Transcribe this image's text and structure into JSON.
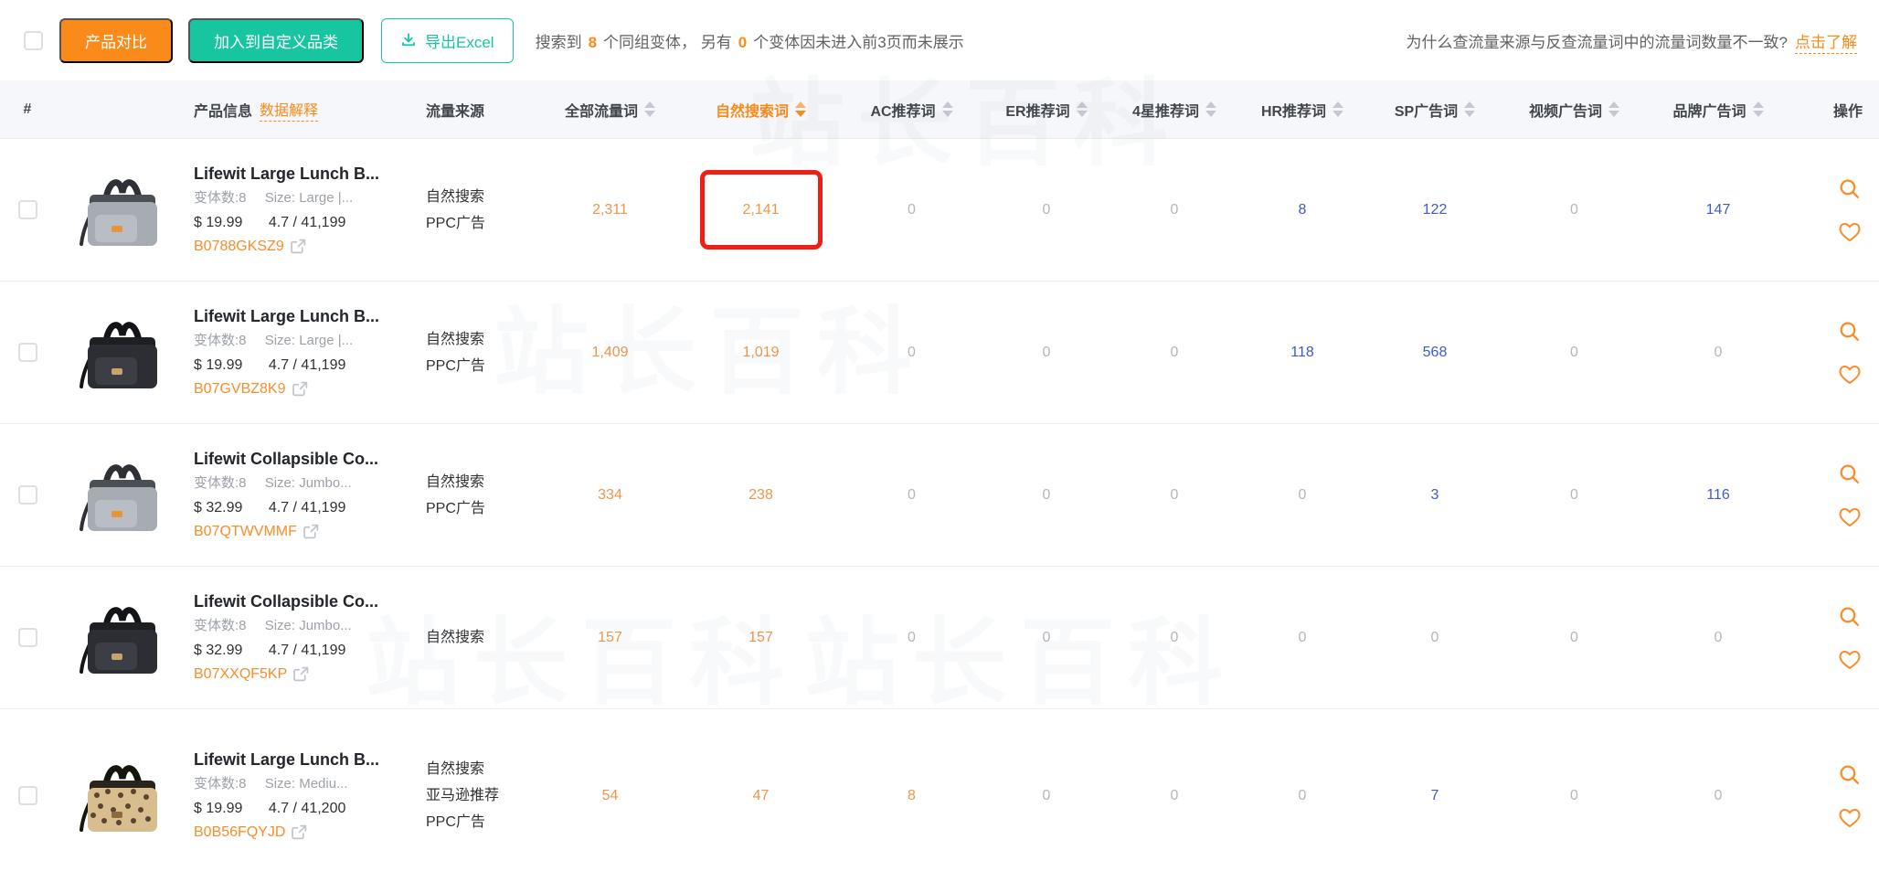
{
  "watermark": "站长百科",
  "toolbar": {
    "compare_button": "产品对比",
    "add_category_button": "加入到自定义品类",
    "export_button": "导出Excel",
    "result": {
      "prefix": "搜索到",
      "count_variants": "8",
      "middle": "个同组变体， 另有",
      "count_hidden": "0",
      "suffix": "个变体因未进入前3页而未展示"
    },
    "help": {
      "question": "为什么查流量来源与反查流量词中的流量词数量不一致?",
      "link": "点击了解"
    }
  },
  "table": {
    "headers": [
      {
        "label": "#"
      },
      {
        "label": "产品信息",
        "link_label": "数据解释"
      },
      {
        "label": "流量来源"
      },
      {
        "label": "全部流量词",
        "sortable": true
      },
      {
        "label": "自然搜索词",
        "sortable": true,
        "active": true
      },
      {
        "label": "AC推荐词",
        "sortable": true
      },
      {
        "label": "ER推荐词",
        "sortable": true
      },
      {
        "label": "4星推荐词",
        "sortable": true
      },
      {
        "label": "HR推荐词",
        "sortable": true
      },
      {
        "label": "SP广告词",
        "sortable": true
      },
      {
        "label": "视频广告词",
        "sortable": true
      },
      {
        "label": "品牌广告词",
        "sortable": true
      },
      {
        "label": "操作"
      }
    ]
  },
  "rows": [
    {
      "image_variant": "gray",
      "title": "Lifewit Large Lunch B...",
      "variants_label": "变体数:8",
      "size_label": "Size: Large |...",
      "price": "$ 19.99",
      "rating": "4.7 / 41,199",
      "asin": "B0788GKSZ9",
      "sources": [
        "自然搜索",
        "PPC广告"
      ],
      "cells": [
        {
          "v": "2,311",
          "c": "orange"
        },
        {
          "v": "2,141",
          "c": "orange",
          "h": "box"
        },
        {
          "v": "0",
          "c": "gray"
        },
        {
          "v": "0",
          "c": "gray"
        },
        {
          "v": "0",
          "c": "gray"
        },
        {
          "v": "8",
          "c": "blue"
        },
        {
          "v": "122",
          "c": "blue"
        },
        {
          "v": "0",
          "c": "gray"
        },
        {
          "v": "147",
          "c": "blue"
        }
      ]
    },
    {
      "image_variant": "black",
      "title": "Lifewit Large Lunch B...",
      "variants_label": "变体数:8",
      "size_label": "Size: Large |...",
      "price": "$ 19.99",
      "rating": "4.7 / 41,199",
      "asin": "B07GVBZ8K9",
      "sources": [
        "自然搜索",
        "PPC广告"
      ],
      "cells": [
        {
          "v": "1,409",
          "c": "orange"
        },
        {
          "v": "1,019",
          "c": "orange"
        },
        {
          "v": "0",
          "c": "gray"
        },
        {
          "v": "0",
          "c": "gray"
        },
        {
          "v": "0",
          "c": "gray"
        },
        {
          "v": "118",
          "c": "blue"
        },
        {
          "v": "568",
          "c": "blue"
        },
        {
          "v": "0",
          "c": "gray"
        },
        {
          "v": "0",
          "c": "gray"
        }
      ]
    },
    {
      "image_variant": "gray",
      "title": "Lifewit Collapsible Co...",
      "variants_label": "变体数:8",
      "size_label": "Size: Jumbo...",
      "price": "$ 32.99",
      "rating": "4.7 / 41,199",
      "asin": "B07QTWVMMF",
      "sources": [
        "自然搜索",
        "PPC广告"
      ],
      "cells": [
        {
          "v": "334",
          "c": "orange"
        },
        {
          "v": "238",
          "c": "orange"
        },
        {
          "v": "0",
          "c": "gray"
        },
        {
          "v": "0",
          "c": "gray"
        },
        {
          "v": "0",
          "c": "gray"
        },
        {
          "v": "0",
          "c": "gray"
        },
        {
          "v": "3",
          "c": "blue"
        },
        {
          "v": "0",
          "c": "gray"
        },
        {
          "v": "116",
          "c": "blue"
        }
      ]
    },
    {
      "image_variant": "black",
      "title": "Lifewit Collapsible Co...",
      "variants_label": "变体数:8",
      "size_label": "Size: Jumbo...",
      "price": "$ 32.99",
      "rating": "4.7 / 41,199",
      "asin": "B07XXQF5KP",
      "sources": [
        "自然搜索"
      ],
      "cells": [
        {
          "v": "157",
          "c": "orange"
        },
        {
          "v": "157",
          "c": "orange"
        },
        {
          "v": "0",
          "c": "gray"
        },
        {
          "v": "0",
          "c": "gray"
        },
        {
          "v": "0",
          "c": "gray"
        },
        {
          "v": "0",
          "c": "gray"
        },
        {
          "v": "0",
          "c": "gray"
        },
        {
          "v": "0",
          "c": "gray"
        },
        {
          "v": "0",
          "c": "gray"
        }
      ]
    },
    {
      "image_variant": "leopard",
      "title": "Lifewit Large Lunch B...",
      "variants_label": "变体数:8",
      "size_label": "Size: Mediu...",
      "price": "$ 19.99",
      "rating": "4.7 / 41,200",
      "asin": "B0B56FQYJD",
      "sources": [
        "自然搜索",
        "亚马逊推荐",
        "PPC广告"
      ],
      "cells": [
        {
          "v": "54",
          "c": "orange"
        },
        {
          "v": "47",
          "c": "orange"
        },
        {
          "v": "8",
          "c": "orange"
        },
        {
          "v": "0",
          "c": "gray"
        },
        {
          "v": "0",
          "c": "gray"
        },
        {
          "v": "0",
          "c": "gray"
        },
        {
          "v": "7",
          "c": "blue"
        },
        {
          "v": "0",
          "c": "gray"
        },
        {
          "v": "0",
          "c": "gray"
        }
      ]
    }
  ]
}
